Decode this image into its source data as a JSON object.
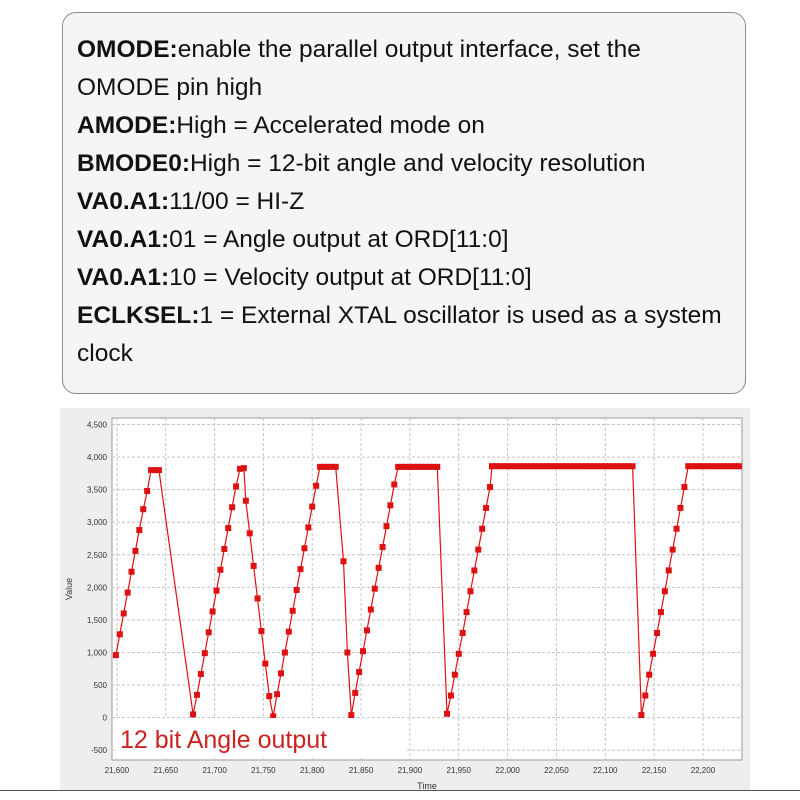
{
  "info": {
    "lines": [
      {
        "key": "OMODE:",
        "text": "enable the parallel output  interface, set the OMODE pin high"
      },
      {
        "key": "AMODE:",
        "text": "High = Accelerated mode on"
      },
      {
        "key": "BMODE0:",
        "text": "High = 12-bit angle and velocity resolution"
      },
      {
        "key": "VA0.A1:",
        "text": "11/00 = HI-Z"
      },
      {
        "key": "VA0.A1:",
        "text": "01 = Angle output at ORD[11:0]"
      },
      {
        "key": "VA0.A1:",
        "text": "10 = Velocity output at ORD[11:0]"
      },
      {
        "key": "ECLKSEL:",
        "text": "1 = External XTAL oscillator is used as a system clock"
      }
    ]
  },
  "chart_data": {
    "type": "line",
    "title": "",
    "xlabel": "Time",
    "ylabel": "Value",
    "annotation": "12 bit Angle output",
    "xlim": [
      21595,
      22240
    ],
    "ylim": [
      -650,
      4600
    ],
    "grid": true,
    "legend": "none",
    "yticks": [
      -500,
      0,
      500,
      1000,
      1500,
      2000,
      2500,
      3000,
      3500,
      4000,
      4500
    ],
    "ytick_labels": [
      "-500",
      "0",
      "500",
      "1,000",
      "1,500",
      "2,000",
      "2,500",
      "3,000",
      "3,500",
      "4,000",
      "4,500"
    ],
    "xticks": [
      21600,
      21650,
      21700,
      21750,
      21800,
      21850,
      21900,
      21950,
      22000,
      22050,
      22100,
      22150,
      22200
    ],
    "xtick_labels": [
      "21,600",
      "21,650",
      "21,700",
      "21,750",
      "21,800",
      "21,850",
      "21,900",
      "21,950",
      "22,000",
      "22,050",
      "22,100",
      "22,150",
      "22,200"
    ],
    "colors": {
      "series": "#dd1111",
      "annotation": "#cc2222",
      "grid": "#c4c4c4",
      "plot_bg": "#ffffff",
      "panel_bg": "#eeeeee"
    },
    "series": [
      {
        "x": [
          21599,
          21603,
          21607,
          21611,
          21615,
          21619,
          21623,
          21627,
          21631,
          21635,
          21639,
          21643,
          21678,
          21682,
          21686,
          21690,
          21694,
          21698,
          21702,
          21706,
          21710,
          21714,
          21718,
          21722,
          21726,
          21730,
          21732,
          21736,
          21740,
          21744,
          21748,
          21752,
          21756,
          21760,
          21764,
          21768,
          21772,
          21776,
          21780,
          21784,
          21788,
          21792,
          21796,
          21800,
          21804,
          21808,
          21812,
          21816,
          21820,
          21824,
          21832,
          21836,
          21840,
          21844,
          21848,
          21852,
          21856,
          21860,
          21864,
          21868,
          21872,
          21876,
          21880,
          21884,
          21888,
          21892,
          21896,
          21900,
          21904,
          21908,
          21912,
          21916,
          21920,
          21924,
          21928,
          21938,
          21942,
          21946,
          21950,
          21954,
          21958,
          21962,
          21966,
          21970,
          21974,
          21978,
          21982,
          21984,
          21988,
          21992,
          21996,
          22000,
          22004,
          22008,
          22012,
          22016,
          22020,
          22024,
          22028,
          22032,
          22036,
          22040,
          22044,
          22048,
          22052,
          22056,
          22060,
          22064,
          22068,
          22072,
          22076,
          22080,
          22084,
          22088,
          22092,
          22096,
          22100,
          22104,
          22108,
          22112,
          22116,
          22120,
          22124,
          22128,
          22137,
          22141,
          22145,
          22149,
          22153,
          22157,
          22161,
          22165,
          22169,
          22173,
          22177,
          22181,
          22185,
          22189,
          22193,
          22197,
          22201,
          22205,
          22209,
          22213,
          22217,
          22221,
          22225,
          22229,
          22233,
          22237
        ],
        "y": [
          960,
          1280,
          1600,
          1920,
          2240,
          2560,
          2880,
          3200,
          3480,
          3800,
          3800,
          3800,
          50,
          350,
          670,
          990,
          1310,
          1630,
          1950,
          2270,
          2590,
          2910,
          3230,
          3550,
          3820,
          3830,
          3330,
          2830,
          2330,
          1830,
          1330,
          830,
          330,
          20,
          360,
          680,
          1000,
          1320,
          1640,
          1960,
          2280,
          2600,
          2920,
          3240,
          3560,
          3850,
          3850,
          3850,
          3850,
          3850,
          2400,
          1000,
          40,
          380,
          700,
          1020,
          1340,
          1660,
          1980,
          2300,
          2620,
          2940,
          3260,
          3580,
          3850,
          3850,
          3850,
          3850,
          3850,
          3850,
          3850,
          3850,
          3850,
          3850,
          3850,
          60,
          340,
          660,
          980,
          1300,
          1620,
          1940,
          2260,
          2580,
          2900,
          3220,
          3540,
          3860,
          3860,
          3860,
          3860,
          3860,
          3860,
          3860,
          3860,
          3860,
          3860,
          3860,
          3860,
          3860,
          3860,
          3860,
          3860,
          3860,
          3860,
          3860,
          3860,
          3860,
          3860,
          3860,
          3860,
          3860,
          3860,
          3860,
          3860,
          3860,
          3860,
          3860,
          3860,
          3860,
          3860,
          3860,
          3860,
          3860,
          40,
          340,
          660,
          980,
          1300,
          1620,
          1940,
          2260,
          2580,
          2900,
          3220,
          3540,
          3860,
          3860,
          3860,
          3860,
          3860,
          3860,
          3860,
          3860,
          3860,
          3860,
          3860,
          3860,
          3860,
          3860
        ]
      }
    ]
  }
}
